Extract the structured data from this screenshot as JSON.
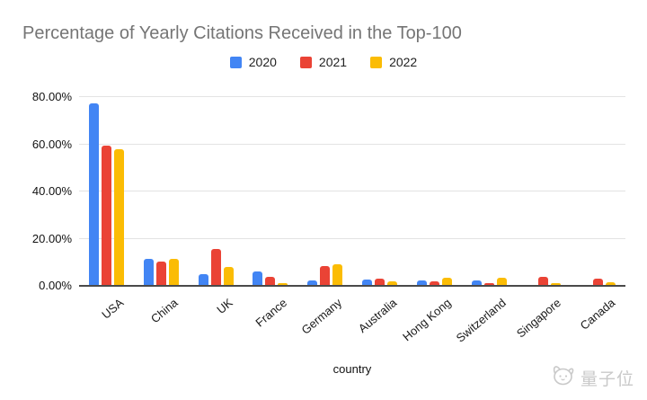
{
  "page": {
    "title": "Percentage of Yearly Citations Received in the Top-100",
    "x_axis_title": "country",
    "watermark_text": "量子位",
    "watermark_icon": "qbitai-cat-logo-icon"
  },
  "chart_data": {
    "type": "bar",
    "title": "Percentage of Yearly Citations Received in the Top-100",
    "xlabel": "country",
    "ylabel": "",
    "grid": true,
    "legend_position": "top-center",
    "ylim": [
      0,
      80
    ],
    "y_ticks": [
      {
        "value": 0,
        "label": "0.00%"
      },
      {
        "value": 20,
        "label": "20.00%"
      },
      {
        "value": 40,
        "label": "40.00%"
      },
      {
        "value": 60,
        "label": "60.00%"
      },
      {
        "value": 80,
        "label": "80.00%"
      }
    ],
    "categories": [
      "USA",
      "China",
      "UK",
      "France",
      "Germany",
      "Australia",
      "Hong Kong",
      "Switzerland",
      "Singapore",
      "Canada"
    ],
    "series": [
      {
        "name": "2020",
        "color": "#4285F4",
        "values": [
          76.9,
          11.0,
          4.4,
          5.9,
          2.1,
          2.3,
          2.1,
          1.8,
          0,
          0
        ]
      },
      {
        "name": "2021",
        "color": "#EA4335",
        "values": [
          59.2,
          10.0,
          15.3,
          3.5,
          7.9,
          2.6,
          1.7,
          0.8,
          3.5,
          2.5
        ]
      },
      {
        "name": "2022",
        "color": "#FBBC04",
        "values": [
          57.4,
          11.0,
          7.5,
          0.6,
          8.6,
          1.6,
          3.0,
          3.2,
          0.8,
          1.2
        ]
      }
    ],
    "colors": {
      "title_text": "#757575",
      "axis_text": "#111111",
      "gridline": "#e3e3e3",
      "axis_line": "#4a4a4a",
      "watermark": "#c9c9c9"
    }
  }
}
